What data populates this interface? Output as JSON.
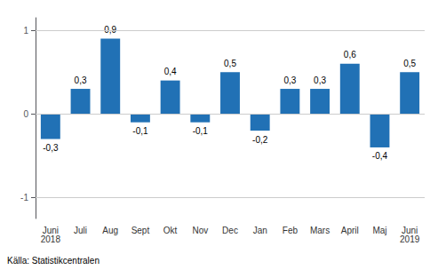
{
  "chart_data": {
    "type": "bar",
    "categories": [
      "Juni\n2018",
      "Juli",
      "Aug",
      "Sept",
      "Okt",
      "Nov",
      "Dec",
      "Jan",
      "Feb",
      "Mars",
      "April",
      "Maj",
      "Juni\n2019"
    ],
    "values": [
      -0.3,
      0.3,
      0.9,
      -0.1,
      0.4,
      -0.1,
      0.5,
      -0.2,
      0.3,
      0.3,
      0.6,
      -0.4,
      0.5
    ],
    "value_labels": [
      "-0,3",
      "0,3",
      "0,9",
      "-0,1",
      "0,4",
      "-0,1",
      "0,5",
      "-0,2",
      "0,3",
      "0,3",
      "0,6",
      "-0,4",
      "0,5"
    ],
    "data_labels": true,
    "color": "#2171b5",
    "ylim": [
      -1.25,
      1.15
    ],
    "yticks": [
      -1,
      0,
      1
    ],
    "grid": true,
    "annotation": "Källa: Statistikcentralen"
  }
}
